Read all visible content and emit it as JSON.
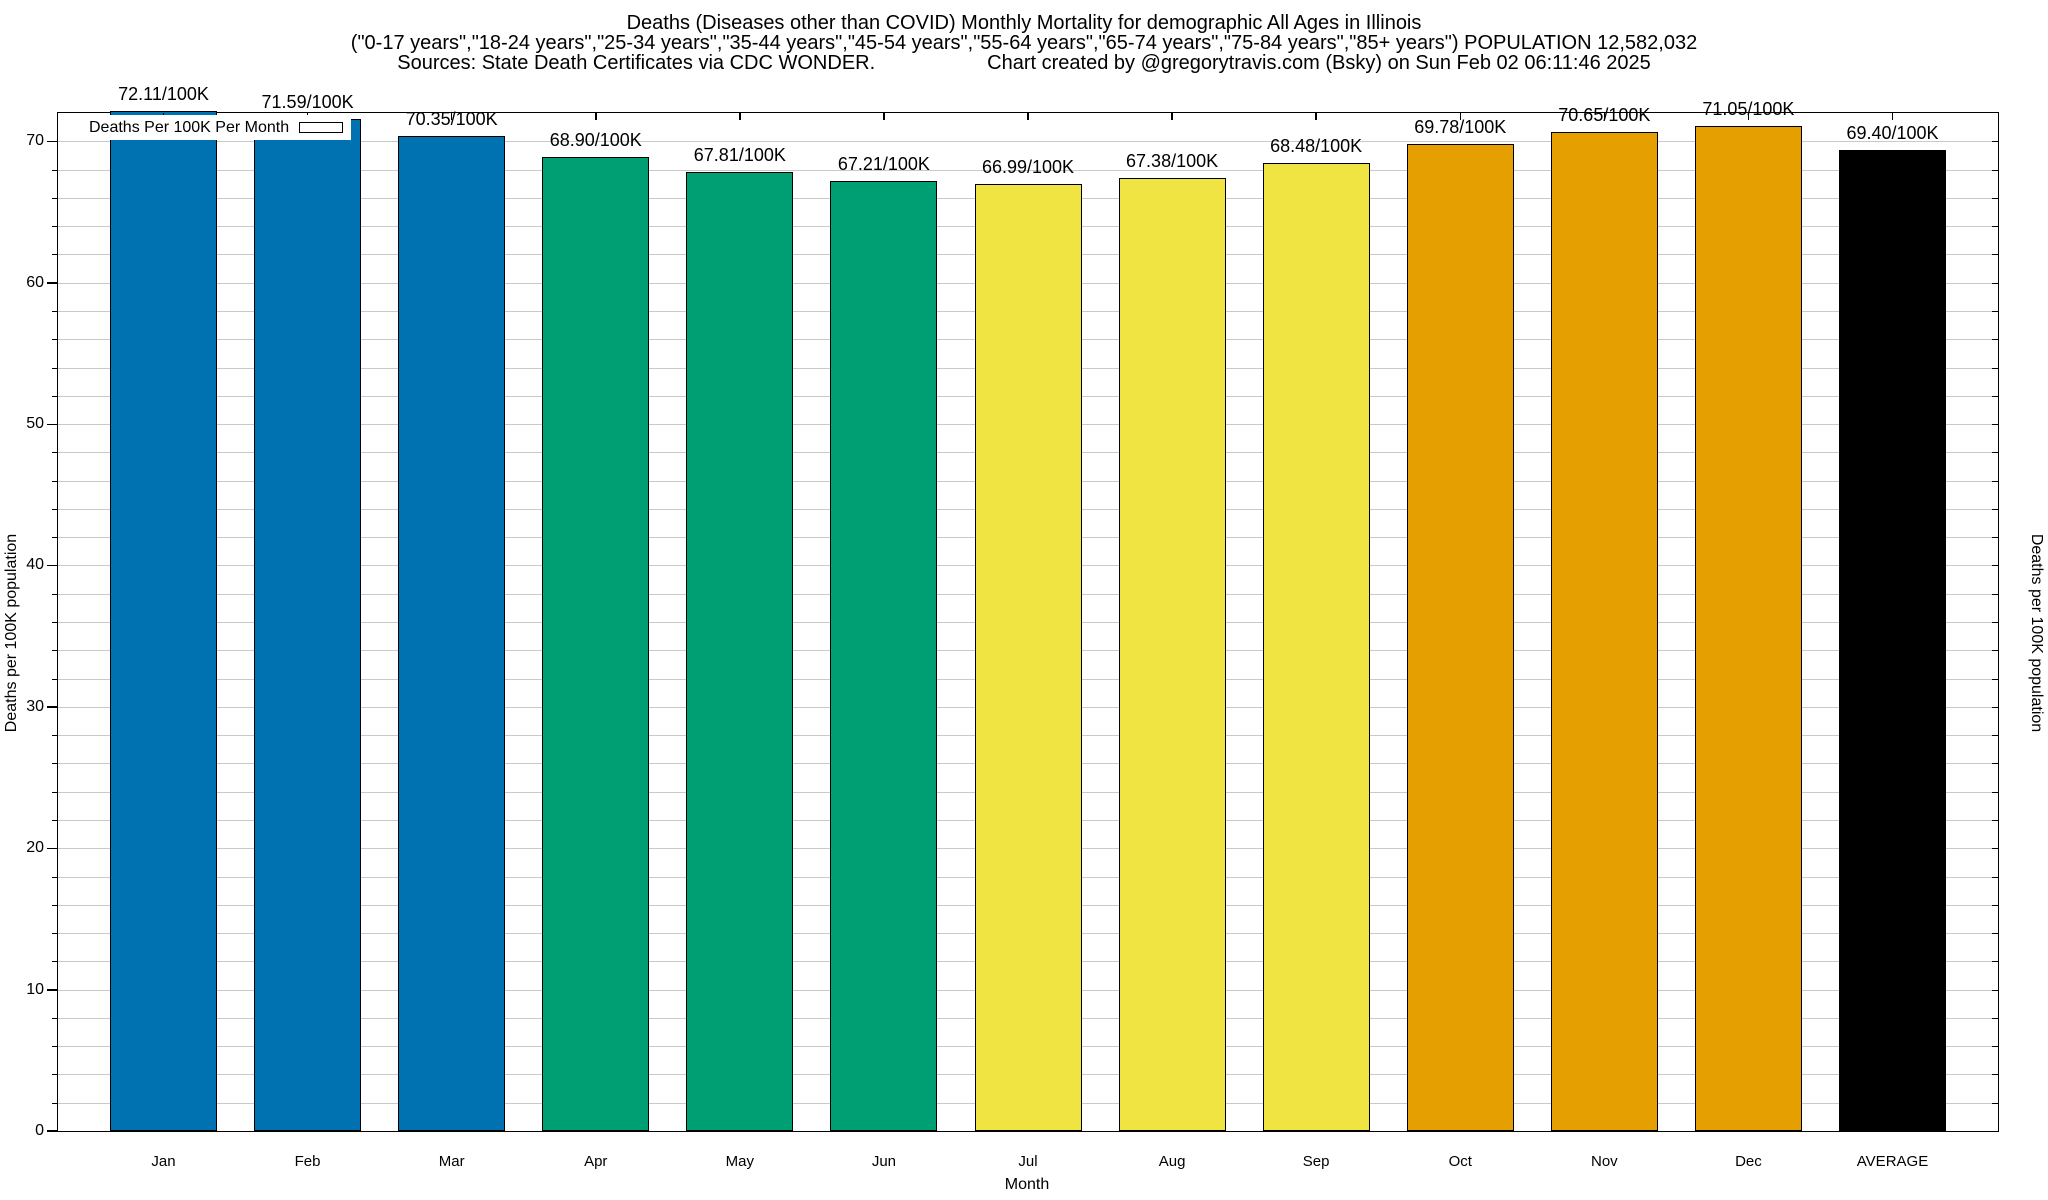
{
  "title": {
    "line1": "Deaths (Diseases other than COVID) Monthly Mortality for demographic All Ages in Illinois",
    "line2": "(\"0-17 years\",\"18-24 years\",\"25-34 years\",\"35-44 years\",\"45-54 years\",\"55-64 years\",\"65-74 years\",\"75-84 years\",\"85+ years\") POPULATION 12,582,032",
    "sources": "Sources: State Death Certificates via CDC WONDER.",
    "credit": "Chart created by @gregorytravis.com (Bsky) on Sun Feb 02 06:11:46 2025"
  },
  "legend": {
    "label": "Deaths Per 100K Per Month",
    "swatch_color": "#0072B2",
    "position": "top-left"
  },
  "axes": {
    "left_label": "Deaths per 100K population",
    "right_label": "Deaths per 100K population",
    "x_label": "Month",
    "y_major_ticks": [
      0,
      10,
      20,
      30,
      40,
      50,
      60,
      70
    ],
    "y_minor_step": 2,
    "ylim": [
      0,
      72
    ]
  },
  "colors": {
    "blue": "#0072B2",
    "green": "#009E73",
    "yellow": "#F0E442",
    "orange": "#E69F00",
    "black": "#000000",
    "gridline": "#c9c9c9",
    "background": "#ffffff"
  },
  "chart_data": {
    "type": "bar",
    "title": "Deaths (Diseases other than COVID) Monthly Mortality for demographic All Ages in Illinois",
    "xlabel": "Month",
    "ylabel": "Deaths per 100K population",
    "ylim": [
      0,
      72
    ],
    "grid": "horizontal gridlines every 2 units",
    "legend_position": "top-left",
    "categories": [
      "Jan",
      "Feb",
      "Mar",
      "Apr",
      "May",
      "Jun",
      "Jul",
      "Aug",
      "Sep",
      "Oct",
      "Nov",
      "Dec",
      "AVERAGE"
    ],
    "values": [
      72.11,
      71.59,
      70.35,
      68.9,
      67.81,
      67.21,
      66.99,
      67.38,
      68.48,
      69.78,
      70.65,
      71.05,
      69.4
    ],
    "bar_labels": [
      "72.11/100K",
      "71.59/100K",
      "70.35/100K",
      "68.90/100K",
      "67.81/100K",
      "67.21/100K",
      "66.99/100K",
      "67.38/100K",
      "68.48/100K",
      "69.78/100K",
      "70.65/100K",
      "71.05/100K",
      "69.40/100K"
    ],
    "bar_colors": [
      "#0072B2",
      "#0072B2",
      "#0072B2",
      "#009E73",
      "#009E73",
      "#009E73",
      "#F0E442",
      "#F0E442",
      "#F0E442",
      "#E69F00",
      "#E69F00",
      "#E69F00",
      "#000000"
    ]
  }
}
